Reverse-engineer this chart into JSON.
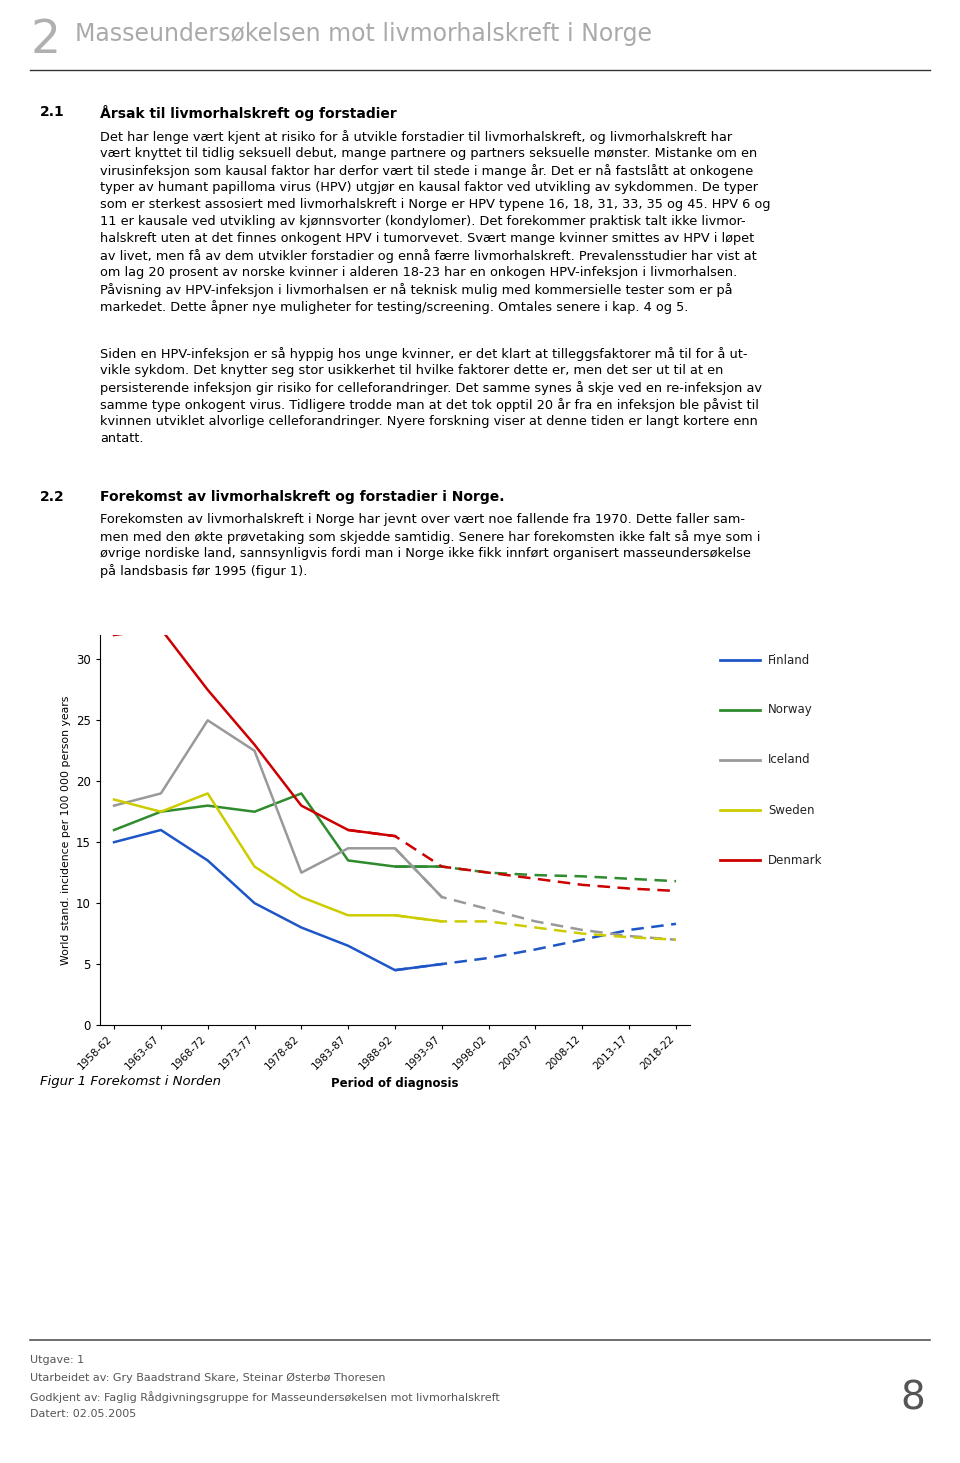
{
  "title_chapter": "2",
  "title_text": "Masseundersøkelsen mot livmorhalskreft i Norge",
  "section_21": "2.1",
  "section_21_title": "Årsak til livmorhalskreft og forstadier",
  "body_text_1_lines": [
    "Det har lenge vært kjent at risiko for å utvikle forstadier til livmorhalskreft, og livmorhalskreft har",
    "vært knyttet til tidlig seksuell debut, mange partnere og partners seksuelle mønster. Mistanke om en",
    "virusinfeksjon som kausal faktor har derfor vært til stede i mange år. Det er nå fastslått at onkogene",
    "typer av humant papilloma virus (HPV) utgjør en kausal faktor ved utvikling av sykdommen. De typer",
    "som er sterkest assosiert med livmorhalskreft i Norge er HPV typene 16, 18, 31, 33, 35 og 45. HPV 6 og",
    "11 er kausale ved utvikling av kjønnsvorter (kondylomer). Det forekommer praktisk talt ikke livmor-",
    "halskreft uten at det finnes onkogent HPV i tumorvevet. Svært mange kvinner smittes av HPV i løpet",
    "av livet, men få av dem utvikler forstadier og ennå færre livmorhalskreft. Prevalensstudier har vist at",
    "om lag 20 prosent av norske kvinner i alderen 18-23 har en onkogen HPV-infeksjon i livmorhalsen.",
    "Påvisning av HPV-infeksjon i livmorhalsen er nå teknisk mulig med kommersielle tester som er på",
    "markedet. Dette åpner nye muligheter for testing/screening. Omtales senere i kap. 4 og 5."
  ],
  "body_text_2_lines": [
    "Siden en HPV-infeksjon er så hyppig hos unge kvinner, er det klart at tilleggsfaktorer må til for å ut-",
    "vikle sykdom. Det knytter seg stor usikkerhet til hvilke faktorer dette er, men det ser ut til at en",
    "persisterende infeksjon gir risiko for celleforandringer. Det samme synes å skje ved en re-infeksjon av",
    "samme type onkogent virus. Tidligere trodde man at det tok opptil 20 år fra en infeksjon ble påvist til",
    "kvinnen utviklet alvorlige celleforandringer. Nyere forskning viser at denne tiden er langt kortere enn",
    "antatt."
  ],
  "section_22": "2.2",
  "section_22_title": "Forekomst av livmorhalskreft og forstadier i Norge.",
  "body_text_3_lines": [
    "Forekomsten av livmorhalskreft i Norge har jevnt over vært noe fallende fra 1970. Dette faller sam-",
    "men med den økte prøvetaking som skjedde samtidig. Senere har forekomsten ikke falt så mye som i",
    "øvrige nordiske land, sannsynligvis fordi man i Norge ikke fikk innført organisert masseundersøkelse",
    "på landsbasis før 1995 (figur 1)."
  ],
  "figure_caption": "Figur 1 Forekomst i Norden",
  "footer_version": "Utgave: 1",
  "footer_author": "Utarbeidet av: Gry Baadstrand Skare, Steinar Østerbø Thoresen",
  "footer_approved": "Godkjent av: Faglig Rådgivningsgruppe for Masseundersøkelsen mot livmorhalskreft",
  "footer_date": "Datert: 02.05.2005",
  "footer_page": "8",
  "x_labels": [
    "1958-62",
    "1963-67",
    "1968-72",
    "1973-77",
    "1978-82",
    "1983-87",
    "1988-92",
    "1993-97",
    "1998-02",
    "2003-07",
    "2008-12",
    "2013-17",
    "2018-22"
  ],
  "x_label": "Period of diagnosis",
  "y_label": "World stand. incidence per 100 000 person years",
  "y_ticks": [
    0,
    5,
    10,
    15,
    20,
    25,
    30
  ],
  "countries": [
    "Finland",
    "Norway",
    "Iceland",
    "Sweden",
    "Denmark"
  ],
  "colors": {
    "Finland": "#1e56c8",
    "Norway": "#2e8b2e",
    "Iceland": "#999999",
    "Sweden": "#cccc00",
    "Denmark": "#cc0000"
  },
  "data_solid": {
    "Finland": [
      15.0,
      16.0,
      13.5,
      10.0,
      8.0,
      6.5,
      4.5,
      5.0,
      null,
      null,
      null,
      null,
      null
    ],
    "Norway": [
      16.0,
      17.5,
      18.0,
      17.5,
      19.0,
      13.5,
      13.0,
      13.0,
      null,
      null,
      null,
      null,
      null
    ],
    "Iceland": [
      18.0,
      19.0,
      25.0,
      22.5,
      12.5,
      14.5,
      14.5,
      10.5,
      null,
      null,
      null,
      null,
      null
    ],
    "Sweden": [
      18.5,
      17.5,
      19.0,
      13.0,
      10.5,
      9.0,
      9.0,
      8.5,
      null,
      null,
      null,
      null,
      null
    ],
    "Denmark": [
      32.0,
      32.5,
      27.5,
      23.0,
      18.0,
      16.0,
      15.5,
      null,
      null,
      null,
      null,
      null,
      null
    ]
  },
  "data_dashed": {
    "Finland": [
      null,
      null,
      null,
      null,
      null,
      null,
      4.5,
      5.0,
      5.5,
      6.2,
      7.0,
      7.8,
      8.3
    ],
    "Norway": [
      null,
      null,
      null,
      null,
      null,
      null,
      13.0,
      13.0,
      12.5,
      12.3,
      12.2,
      12.0,
      11.8
    ],
    "Iceland": [
      null,
      null,
      null,
      null,
      null,
      null,
      14.5,
      10.5,
      9.5,
      8.5,
      7.8,
      7.3,
      7.0
    ],
    "Sweden": [
      null,
      null,
      null,
      null,
      null,
      null,
      9.0,
      8.5,
      8.5,
      8.0,
      7.5,
      7.2,
      7.0
    ],
    "Denmark": [
      null,
      null,
      null,
      null,
      null,
      16.0,
      15.5,
      13.0,
      12.5,
      12.0,
      11.5,
      11.2,
      11.0
    ]
  }
}
